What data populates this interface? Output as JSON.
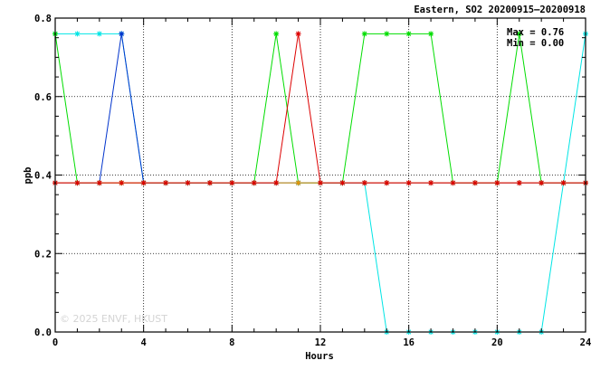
{
  "chart_data": {
    "type": "line",
    "title": "Eastern, SO2 20200915–20200918",
    "xlabel": "Hours",
    "ylabel": "ppb",
    "xlim": [
      0,
      24
    ],
    "ylim": [
      0,
      0.8
    ],
    "xticks": [
      0,
      4,
      8,
      12,
      16,
      20,
      24
    ],
    "yticks": [
      0.0,
      0.2,
      0.4,
      0.6,
      0.8
    ],
    "xtick_labels": [
      "0",
      "4",
      "8",
      "12",
      "16",
      "20",
      "24"
    ],
    "ytick_labels": [
      "0.0",
      "0.2",
      "0.4",
      "0.6",
      "0.8"
    ],
    "grid": true,
    "stats": {
      "max_label": "Max = 0.76",
      "min_label": "Min = 0.00"
    },
    "watermark": "© 2025 ENVF, HKUST",
    "x": [
      0,
      1,
      2,
      3,
      4,
      5,
      6,
      7,
      8,
      9,
      10,
      11,
      12,
      13,
      14,
      15,
      16,
      17,
      18,
      19,
      20,
      21,
      22,
      23,
      24
    ],
    "series": [
      {
        "color": "#00e5e5",
        "values": [
          0.76,
          0.76,
          0.76,
          0.76,
          0.38,
          0.38,
          0.38,
          0.38,
          0.38,
          0.38,
          0.38,
          0.38,
          0.38,
          0.38,
          0.38,
          0,
          0,
          0,
          0,
          0,
          0,
          0,
          0,
          0.38,
          0.76
        ]
      },
      {
        "color": "#00dd00",
        "values": [
          0.76,
          0.38,
          0.38,
          0.38,
          0.38,
          0.38,
          0.38,
          0.38,
          0.38,
          0.38,
          0.76,
          0.38,
          0.38,
          0.38,
          0.76,
          0.76,
          0.76,
          0.76,
          0.38,
          0.38,
          0.38,
          0.76,
          0.38,
          0.38,
          0.38
        ]
      },
      {
        "color": "#0033cc",
        "values": [
          0.38,
          0.38,
          0.38,
          0.76,
          0.38,
          0.38,
          0.38,
          0.38,
          0.38,
          0.38,
          0.38,
          0.38,
          0.38,
          0.38,
          0.38,
          0.38,
          0.38,
          0.38,
          0.38,
          0.38,
          0.38,
          0.38,
          0.38,
          0.38,
          0.38
        ]
      },
      {
        "color": "#e69500",
        "values": [
          0.38,
          0.38,
          0.38,
          0.38,
          0.38,
          0.38,
          0.38,
          0.38,
          0.38,
          0.38,
          0.38,
          0.38,
          0.38,
          0.38,
          0.38,
          0.38,
          0.38,
          0.38,
          0.38,
          0.38,
          0.38,
          0.38,
          0.38,
          0.38,
          0.38
        ]
      },
      {
        "color": "#dd0000",
        "values": [
          0.38,
          0.38,
          0.38,
          0.38,
          0.38,
          0.38,
          0.38,
          0.38,
          0.38,
          0.38,
          0.38,
          0.76,
          0.38,
          0.38,
          0.38,
          0.38,
          0.38,
          0.38,
          0.38,
          0.38,
          0.38,
          0.38,
          0.38,
          0.38,
          0.38
        ]
      }
    ]
  }
}
